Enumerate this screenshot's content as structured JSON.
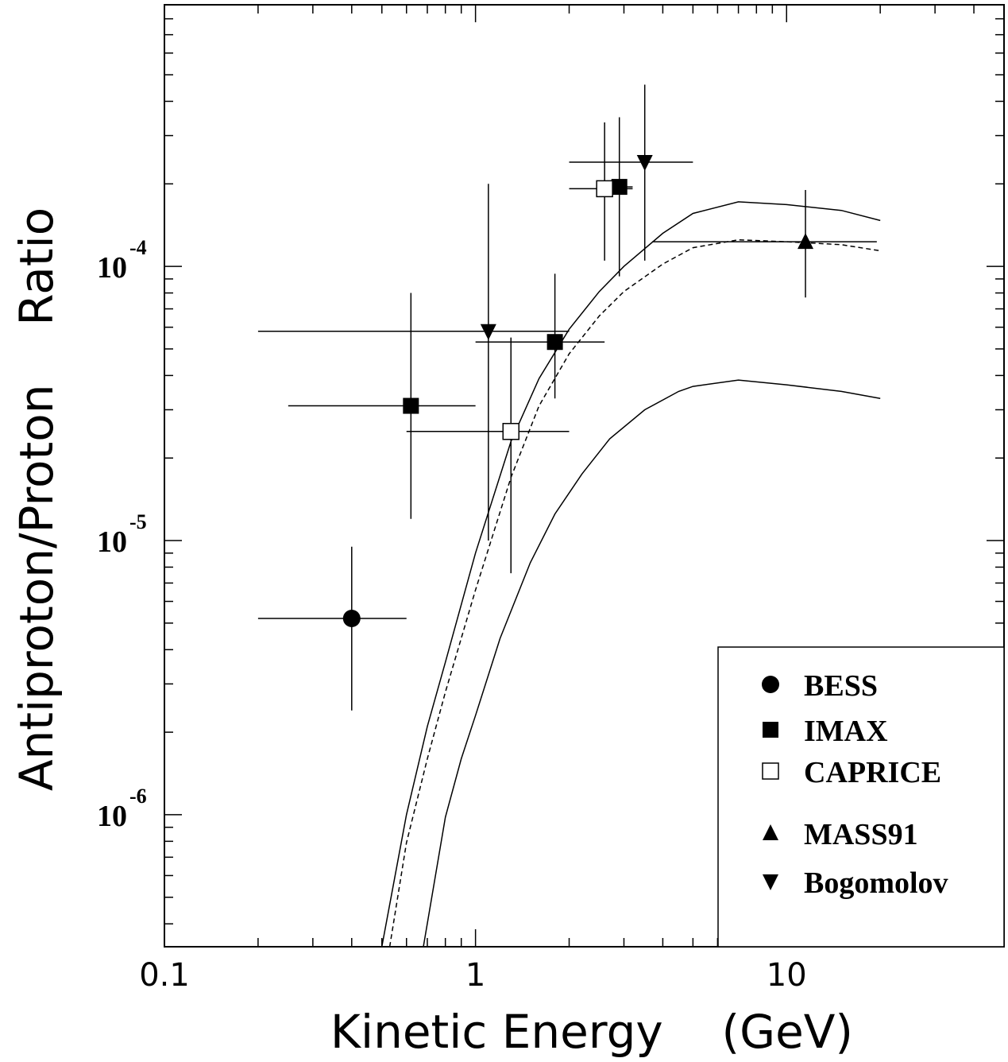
{
  "chart_data": {
    "type": "scatter",
    "title": "",
    "xlabel": "Kinetic Energy    (GeV)",
    "ylabel": "Antiproton/Proton    Ratio",
    "xscale": "log",
    "yscale": "log",
    "xlim": [
      0.1,
      50
    ],
    "ylim": [
      3.3e-07,
      0.0009
    ],
    "x_ticks": [
      {
        "value": 0.1,
        "label": "0.1"
      },
      {
        "value": 1,
        "label": "1"
      },
      {
        "value": 10,
        "label": "10"
      }
    ],
    "y_ticks": [
      {
        "value": 1e-06,
        "base": "10",
        "exp": "-6"
      },
      {
        "value": 1e-05,
        "base": "10",
        "exp": "-5"
      },
      {
        "value": 0.0001,
        "base": "10",
        "exp": "-4"
      }
    ],
    "legend_position": "bottom-right",
    "series": [
      {
        "name": "BESS",
        "marker": "circle-filled",
        "points": [
          {
            "x": 0.4,
            "y": 5.2e-06,
            "xlo": 0.2,
            "xhi": 0.6,
            "ylo": 2.4e-06,
            "yhi": 9.5e-06
          }
        ]
      },
      {
        "name": "IMAX",
        "marker": "square-filled",
        "points": [
          {
            "x": 0.62,
            "y": 3.1e-05,
            "xlo": 0.25,
            "xhi": 1.0,
            "ylo": 1.2e-05,
            "yhi": 8e-05
          },
          {
            "x": 1.8,
            "y": 5.3e-05,
            "xlo": 1.0,
            "xhi": 2.6,
            "ylo": 3.3e-05,
            "yhi": 9.4e-05
          },
          {
            "x": 2.9,
            "y": 0.000195,
            "xlo": 2.6,
            "xhi": 3.2,
            "ylo": 9.2e-05,
            "yhi": 0.00035
          }
        ]
      },
      {
        "name": "CAPRICE",
        "marker": "square-open",
        "points": [
          {
            "x": 1.3,
            "y": 2.5e-05,
            "xlo": 0.6,
            "xhi": 2.0,
            "ylo": 7.6e-06,
            "yhi": 5.5e-05
          },
          {
            "x": 2.6,
            "y": 0.000192,
            "xlo": 2.0,
            "xhi": 3.2,
            "ylo": 0.000105,
            "yhi": 0.000335
          }
        ]
      },
      {
        "name": "MASS91",
        "marker": "triangle-up-filled",
        "points": [
          {
            "x": 11.5,
            "y": 0.000123,
            "xlo": 3.7,
            "xhi": 19.5,
            "ylo": 7.7e-05,
            "yhi": 0.00019
          }
        ]
      },
      {
        "name": "Bogomolov",
        "marker": "triangle-down-filled",
        "points": [
          {
            "x": 1.1,
            "y": 5.8e-05,
            "xlo": 0.2,
            "xhi": 2.0,
            "ylo": 1e-05,
            "yhi": 0.0002
          },
          {
            "x": 3.5,
            "y": 0.00024,
            "xlo": 2.0,
            "xhi": 5.0,
            "ylo": 0.000105,
            "yhi": 0.00046
          }
        ]
      }
    ],
    "curves": [
      {
        "style": "solid",
        "points": [
          [
            0.5,
            3.3e-07
          ],
          [
            0.6,
            1e-06
          ],
          [
            0.7,
            2.1e-06
          ],
          [
            0.8,
            3.6e-06
          ],
          [
            1.0,
            9e-06
          ],
          [
            1.3,
            2.3e-05
          ],
          [
            1.6,
            3.9e-05
          ],
          [
            2.0,
            5.9e-05
          ],
          [
            2.5,
            8.1e-05
          ],
          [
            3.0,
            0.0001
          ],
          [
            4.0,
            0.000132
          ],
          [
            5.0,
            0.000156
          ],
          [
            7.0,
            0.000172
          ],
          [
            10.0,
            0.000168
          ],
          [
            15.0,
            0.00016
          ],
          [
            20.0,
            0.000147
          ]
        ]
      },
      {
        "style": "dashed",
        "points": [
          [
            0.53,
            3.3e-07
          ],
          [
            0.6,
            7.9e-07
          ],
          [
            0.7,
            1.6e-06
          ],
          [
            0.8,
            2.8e-06
          ],
          [
            1.0,
            6.6e-06
          ],
          [
            1.3,
            1.7e-05
          ],
          [
            1.6,
            3.1e-05
          ],
          [
            2.0,
            4.8e-05
          ],
          [
            2.5,
            6.6e-05
          ],
          [
            3.0,
            8.1e-05
          ],
          [
            4.0,
            0.000102
          ],
          [
            5.0,
            0.000117
          ],
          [
            7.0,
            0.000125
          ],
          [
            10.0,
            0.000123
          ],
          [
            15.0,
            0.00012
          ],
          [
            20.0,
            0.000114
          ]
        ]
      },
      {
        "style": "solid",
        "points": [
          [
            0.68,
            3.3e-07
          ],
          [
            0.8,
            9.8e-07
          ],
          [
            0.9,
            1.6e-06
          ],
          [
            1.0,
            2.3e-06
          ],
          [
            1.2,
            4.4e-06
          ],
          [
            1.5,
            8.3e-06
          ],
          [
            1.8,
            1.25e-05
          ],
          [
            2.2,
            1.75e-05
          ],
          [
            2.7,
            2.35e-05
          ],
          [
            3.5,
            3e-05
          ],
          [
            4.5,
            3.5e-05
          ],
          [
            5.0,
            3.65e-05
          ],
          [
            7.0,
            3.85e-05
          ],
          [
            10.0,
            3.7e-05
          ],
          [
            15.0,
            3.5e-05
          ],
          [
            20.0,
            3.3e-05
          ]
        ]
      }
    ]
  }
}
